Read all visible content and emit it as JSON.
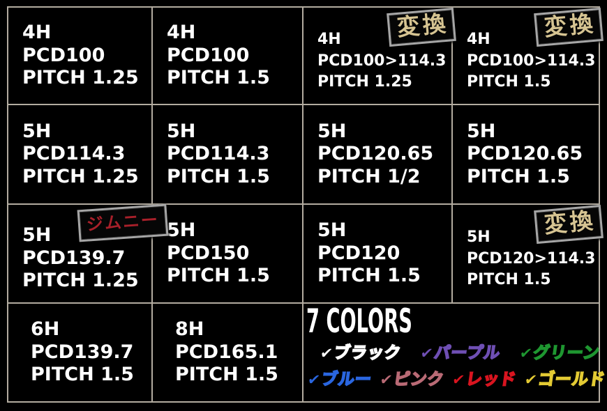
{
  "board": {
    "grid_line_color": "#b3aca0",
    "background_color": "#000000",
    "text_color": "#ffffff",
    "cells": [
      {
        "lines": [
          "4H",
          "PCD100",
          "PITCH 1.25"
        ]
      },
      {
        "lines": [
          "4H",
          "PCD100",
          "PITCH 1.5"
        ]
      },
      {
        "lines": [
          "4H",
          "PCD100>114.3",
          "PITCH 1.25"
        ],
        "badge": "変換"
      },
      {
        "lines": [
          "4H",
          "PCD100>114.3",
          "PITCH 1.5"
        ],
        "badge": "変換"
      },
      {
        "lines": [
          "5H",
          "PCD114.3",
          "PITCH 1.25"
        ]
      },
      {
        "lines": [
          "5H",
          "PCD114.3",
          "PITCH 1.5"
        ]
      },
      {
        "lines": [
          "5H",
          "PCD120.65",
          "PITCH 1/2"
        ]
      },
      {
        "lines": [
          "5H",
          "PCD120.65",
          "PITCH 1.5"
        ]
      },
      {
        "lines": [
          "5H",
          "PCD139.7",
          "PITCH 1.25"
        ],
        "badge": "ジムニー"
      },
      {
        "lines": [
          "5H",
          "PCD150",
          "PITCH 1.5"
        ]
      },
      {
        "lines": [
          "5H",
          "PCD120",
          "PITCH 1.5"
        ]
      },
      {
        "lines": [
          "5H",
          "PCD120>114.3",
          "PITCH 1.5"
        ],
        "badge": "変換"
      },
      {
        "lines": [
          "6H",
          "PCD139.7",
          "PITCH 1.5"
        ]
      },
      {
        "lines": [
          "8H",
          "PCD165.1",
          "PITCH 1.5"
        ]
      }
    ],
    "badge_styles": {
      "henkan_text_color": "#d6c492",
      "jimny_text_color": "#a8202a",
      "frame_color": "#a6a6a6"
    },
    "colors_panel": {
      "title": "7 COLORS",
      "check": "✔",
      "row1": [
        {
          "name": "ブラック",
          "hex": "#ffffff",
          "css": "--c:#ffffff"
        },
        {
          "name": "パープル",
          "hex": "#6f4fb4",
          "css": "--c:#6f4fb4"
        },
        {
          "name": "グリーン",
          "hex": "#1e9630",
          "css": "--c:#1e9630"
        }
      ],
      "row2": [
        {
          "name": "ブルー",
          "hex": "#2a66e0",
          "css": "--c:#2a66e0"
        },
        {
          "name": "ピンク",
          "hex": "#b96a75",
          "css": "--c:#b96a75"
        },
        {
          "name": "レッド",
          "hex": "#d8141f",
          "css": "--c:#d8141f"
        },
        {
          "name": "ゴールド",
          "hex": "#e3ca33",
          "css": "--c:#e3ca33"
        }
      ]
    }
  }
}
